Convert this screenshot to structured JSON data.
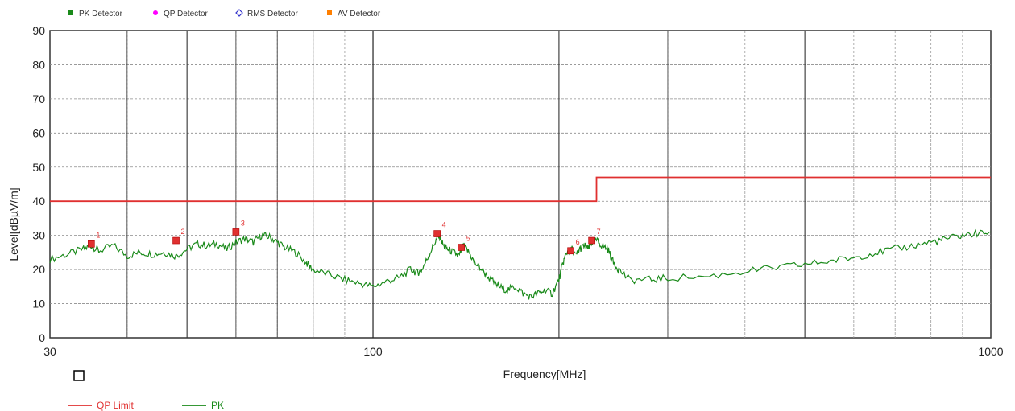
{
  "legend_top": [
    {
      "label": "PK Detector",
      "color": "#1a8a1a",
      "icon": "square-marker-icon"
    },
    {
      "label": "QP Detector",
      "color": "#ff00ff",
      "icon": "circle-marker-icon"
    },
    {
      "label": "RMS Detector",
      "color": "#3333cc",
      "icon": "diamond-marker-icon"
    },
    {
      "label": "AV Detector",
      "color": "#ff7f00",
      "icon": "square-marker-icon"
    }
  ],
  "legend_bottom": [
    {
      "label": "QP Limit",
      "color": "#e03030"
    },
    {
      "label": "PK",
      "color": "#1a8a1a"
    }
  ],
  "chart_data": {
    "type": "line",
    "xlabel": "Frequency[MHz]",
    "ylabel": "Level[dBµV/m]",
    "xscale": "log",
    "xlim": [
      30,
      1000
    ],
    "ylim": [
      0,
      90
    ],
    "x_tick_labels": [
      "30",
      "100",
      "1000"
    ],
    "x_tick_values": [
      30,
      100,
      1000
    ],
    "y_tick_values": [
      0,
      10,
      20,
      30,
      40,
      50,
      60,
      70,
      80,
      90
    ],
    "grid": true,
    "series": [
      {
        "name": "QP Limit",
        "color": "#e03030",
        "x": [
          30,
          230,
          230,
          1000
        ],
        "y": [
          40,
          40,
          47,
          47
        ]
      },
      {
        "name": "PK",
        "color": "#1a8a1a",
        "x": [
          30,
          32,
          34,
          35,
          36,
          38,
          40,
          42,
          44,
          46,
          48,
          50,
          52,
          54,
          56,
          58,
          60,
          62,
          64,
          66,
          68,
          70,
          72,
          75,
          78,
          80,
          85,
          90,
          95,
          100,
          105,
          110,
          115,
          118,
          120,
          123,
          126,
          128,
          130,
          132,
          135,
          138,
          140,
          143,
          146,
          150,
          155,
          160,
          165,
          170,
          175,
          180,
          185,
          190,
          195,
          200,
          203,
          206,
          210,
          213,
          216,
          220,
          223,
          226,
          230,
          235,
          240,
          245,
          250,
          260,
          280,
          300,
          350,
          400,
          450,
          500,
          550,
          600,
          650,
          700,
          750,
          800,
          850,
          900,
          950,
          1000
        ],
        "y": [
          23,
          24.5,
          26,
          27,
          25.5,
          27,
          24,
          25,
          24.5,
          25,
          24,
          26,
          27.5,
          27,
          27.5,
          26,
          28,
          29,
          28,
          30,
          29.5,
          28,
          26.5,
          25,
          22,
          20,
          18.5,
          17,
          16,
          15,
          16.5,
          17.5,
          20,
          19,
          20,
          24,
          28,
          30,
          27,
          26,
          25,
          24,
          27,
          25,
          22,
          20,
          17,
          15,
          14,
          15,
          13,
          12,
          13,
          14,
          13,
          17,
          22,
          25,
          26,
          24,
          26,
          27,
          26,
          28,
          28.5,
          27,
          26,
          22,
          20,
          17,
          17,
          17.5,
          18,
          19.5,
          20.5,
          21.5,
          22.5,
          23.5,
          25,
          26,
          27,
          28,
          29,
          30,
          30.5,
          31
        ]
      }
    ],
    "markers": [
      {
        "label": "1",
        "x": 35,
        "y": 27.5
      },
      {
        "label": "2",
        "x": 48,
        "y": 28.5
      },
      {
        "label": "3",
        "x": 60,
        "y": 31
      },
      {
        "label": "4",
        "x": 127,
        "y": 30.5
      },
      {
        "label": "5",
        "x": 139,
        "y": 26.5
      },
      {
        "label": "6",
        "x": 209,
        "y": 25.5
      },
      {
        "label": "7",
        "x": 226,
        "y": 28.5
      }
    ],
    "marker_color": "#e03030"
  }
}
